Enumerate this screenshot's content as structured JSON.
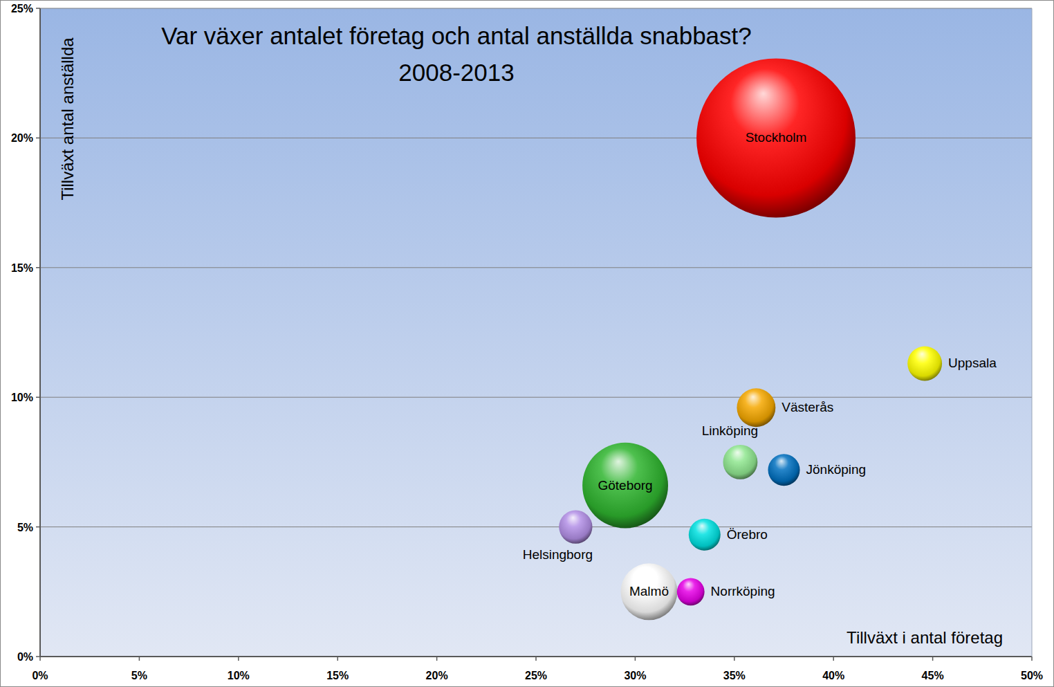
{
  "chart_data": {
    "type": "bubble",
    "title": "Var växer antalet företag och antal anställda snabbast?",
    "subtitle": "2008-2013",
    "x_label": "Tillväxt i antal företag",
    "y_label": "Tillväxt antal anställda",
    "labels": [
      "Stockholm",
      "Uppsala",
      "Västerås",
      "Linköping",
      "Jönköping",
      "Göteborg",
      "Helsingborg",
      "Örebro",
      "Malmö",
      "Norrköping"
    ],
    "x": [
      37.1,
      44.6,
      36.1,
      35.3,
      37.5,
      29.5,
      27.0,
      33.5,
      30.7,
      32.8
    ],
    "values": [
      20.0,
      11.3,
      9.6,
      7.5,
      7.2,
      6.6,
      5.0,
      4.7,
      2.5,
      2.5
    ],
    "sizes": [
      100,
      4.7,
      5.9,
      4.7,
      4.0,
      29,
      4.4,
      4.0,
      12.7,
      3.0
    ],
    "colors": [
      "#ff0000",
      "#ffff00",
      "#f5a800",
      "#8fe68f",
      "#0070c0",
      "#2fb52f",
      "#b38fe6",
      "#00e0e0",
      "#ffffff",
      "#e600e6"
    ],
    "xlim": [
      0,
      50
    ],
    "ylim": [
      0,
      25
    ],
    "xticks": [
      {
        "value": 0,
        "label": "0%"
      },
      {
        "value": 5,
        "label": "5%"
      },
      {
        "value": 10,
        "label": "10%"
      },
      {
        "value": 15,
        "label": "15%"
      },
      {
        "value": 20,
        "label": "20%"
      },
      {
        "value": 25,
        "label": "25%"
      },
      {
        "value": 30,
        "label": "30%"
      },
      {
        "value": 35,
        "label": "35%"
      },
      {
        "value": 40,
        "label": "40%"
      },
      {
        "value": 45,
        "label": "45%"
      },
      {
        "value": 50,
        "label": "50%"
      }
    ],
    "yticks": [
      {
        "value": 0,
        "label": "0%"
      },
      {
        "value": 5,
        "label": "5%"
      },
      {
        "value": 10,
        "label": "10%"
      },
      {
        "value": 15,
        "label": "15%"
      },
      {
        "value": 20,
        "label": "20%"
      },
      {
        "value": 25,
        "label": "25%"
      }
    ],
    "grid": true
  }
}
